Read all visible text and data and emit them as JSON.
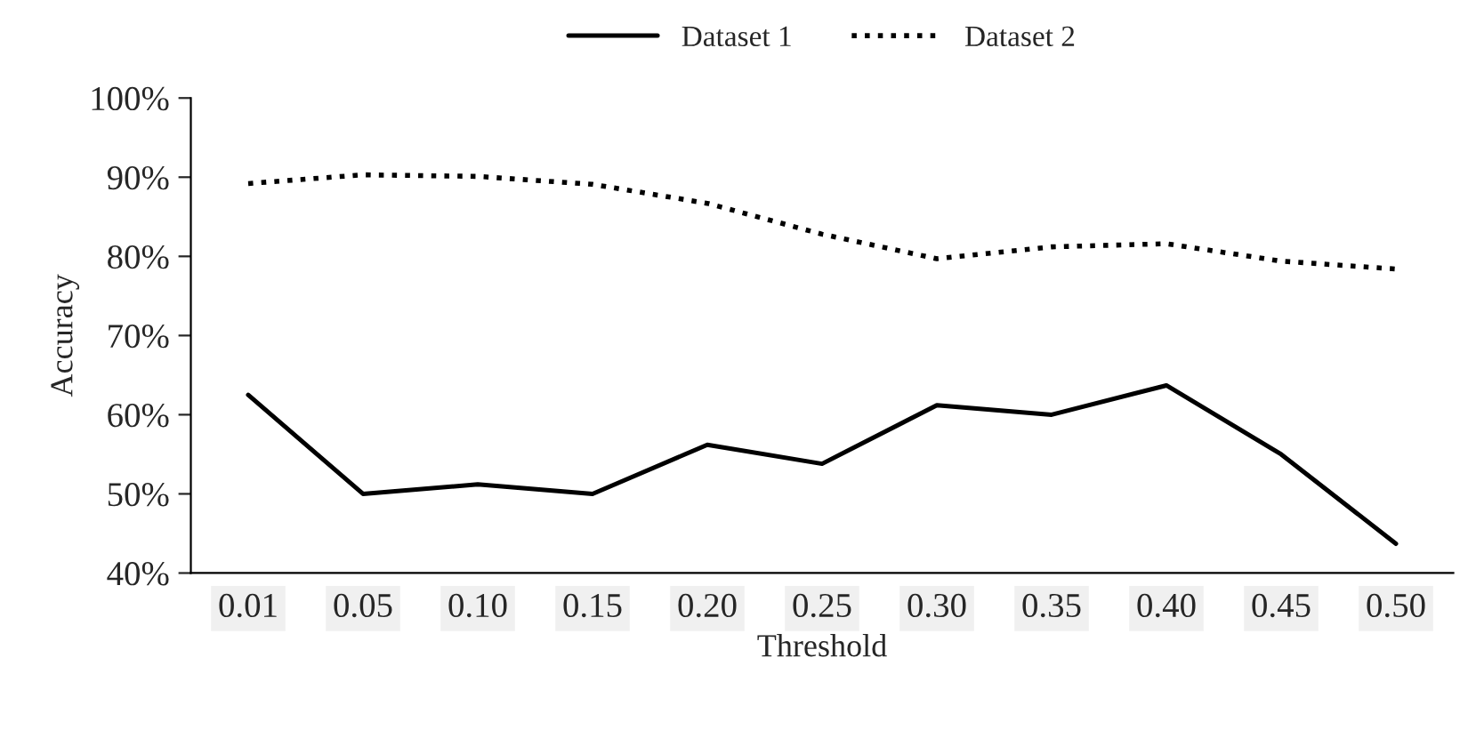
{
  "chart_data": {
    "type": "line",
    "xlabel": "Threshold",
    "ylabel": "Accuracy",
    "categories": [
      "0.01",
      "0.05",
      "0.10",
      "0.15",
      "0.20",
      "0.25",
      "0.30",
      "0.35",
      "0.40",
      "0.45",
      "0.50"
    ],
    "series": [
      {
        "name": "Dataset 1",
        "color": "#000000",
        "line_style": "solid",
        "values": [
          62.5,
          50,
          51.2,
          50,
          56.2,
          53.8,
          61.2,
          60,
          63.7,
          55,
          43.7
        ]
      },
      {
        "name": "Dataset 2",
        "color": "#000000",
        "line_style": "dotted",
        "values": [
          89.2,
          90.3,
          90.1,
          89.1,
          86.7,
          82.8,
          79.7,
          81.2,
          81.6,
          79.4,
          78.4
        ]
      }
    ],
    "ylim": [
      40,
      100
    ],
    "yticks": [
      {
        "value": 40,
        "label": "40%"
      },
      {
        "value": 50,
        "label": "50%"
      },
      {
        "value": 60,
        "label": "60%"
      },
      {
        "value": 70,
        "label": "70%"
      },
      {
        "value": 80,
        "label": "80%"
      },
      {
        "value": 90,
        "label": "90%"
      },
      {
        "value": 100,
        "label": "100%"
      }
    ],
    "grid": false,
    "legend": "top",
    "marker": "none"
  }
}
